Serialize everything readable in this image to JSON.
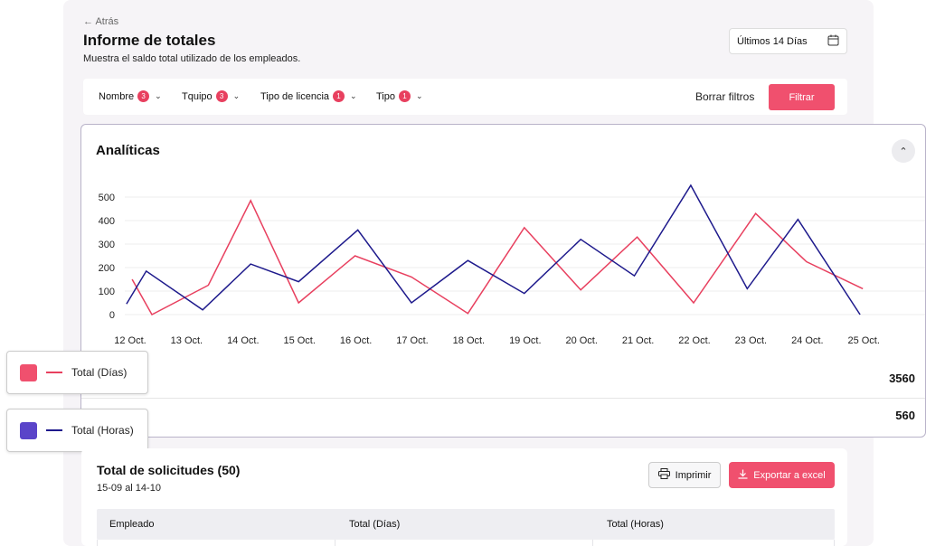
{
  "header": {
    "back_label": "← Atrás",
    "title": "Informe de totales",
    "subtitle": "Muestra el saldo total utilizado de los empleados.",
    "date_range": "Últimos 14 Días"
  },
  "filters": {
    "items": [
      {
        "label": "Nombre",
        "count": "3"
      },
      {
        "label": "Tquipo",
        "count": "3"
      },
      {
        "label": "Tipo de licencia",
        "count": "1"
      },
      {
        "label": "Tipo",
        "count": "1"
      }
    ],
    "clear_label": "Borrar filtros",
    "apply_label": "Filtrar"
  },
  "analytics": {
    "title": "Analíticas",
    "collapse_icon": "chevron-up-icon",
    "totals": [
      {
        "series": "Total (Días)",
        "value": "3560"
      },
      {
        "series": "Total (Horas)",
        "value": "560"
      }
    ]
  },
  "legend": [
    {
      "label": "Total (Días)",
      "color": "#e8405f"
    },
    {
      "label": "Total (Horas)",
      "color": "#5a44c9"
    }
  ],
  "chart_data": {
    "type": "line",
    "x": [
      "12 Oct.",
      "13 Oct.",
      "14 Oct.",
      "15 Oct.",
      "16 Oct.",
      "17 Oct.",
      "18 Oct.",
      "19 Oct.",
      "20 Oct.",
      "21 Oct.",
      "22 Oct.",
      "23 Oct.",
      "24 Oct.",
      "25 Oct."
    ],
    "y_ticks": [
      "0",
      "100",
      "200",
      "300",
      "400",
      "500"
    ],
    "ylim": [
      0,
      500
    ],
    "grid": true,
    "series": [
      {
        "name": "Total (Días)",
        "color": "#e8405f",
        "points": [
          [
            0.05,
            150
          ],
          [
            0.4,
            0
          ],
          [
            1.4,
            125
          ],
          [
            2.15,
            485
          ],
          [
            3.0,
            50
          ],
          [
            4.0,
            250
          ],
          [
            5.0,
            160
          ],
          [
            6.0,
            5
          ],
          [
            7.0,
            370
          ],
          [
            8.0,
            105
          ],
          [
            9.0,
            330
          ],
          [
            10.0,
            50
          ],
          [
            11.1,
            430
          ],
          [
            12.0,
            225
          ],
          [
            13.0,
            110
          ]
        ]
      },
      {
        "name": "Total (Horas)",
        "color": "#1e1a8c",
        "points": [
          [
            -0.05,
            45
          ],
          [
            0.3,
            185
          ],
          [
            1.3,
            20
          ],
          [
            2.15,
            215
          ],
          [
            3.0,
            140
          ],
          [
            4.05,
            360
          ],
          [
            5.0,
            50
          ],
          [
            6.0,
            230
          ],
          [
            7.0,
            90
          ],
          [
            8.0,
            320
          ],
          [
            8.95,
            165
          ],
          [
            9.95,
            550
          ],
          [
            10.95,
            110
          ],
          [
            11.85,
            405
          ],
          [
            12.95,
            0
          ]
        ]
      }
    ]
  },
  "requests": {
    "title": "Total de solicitudes (50)",
    "range": "15-09 al 14-10",
    "print_label": "Imprimir",
    "export_label": "Exportar a excel",
    "columns": [
      "Empleado",
      "Total (Días)",
      "Total (Horas)"
    ]
  }
}
